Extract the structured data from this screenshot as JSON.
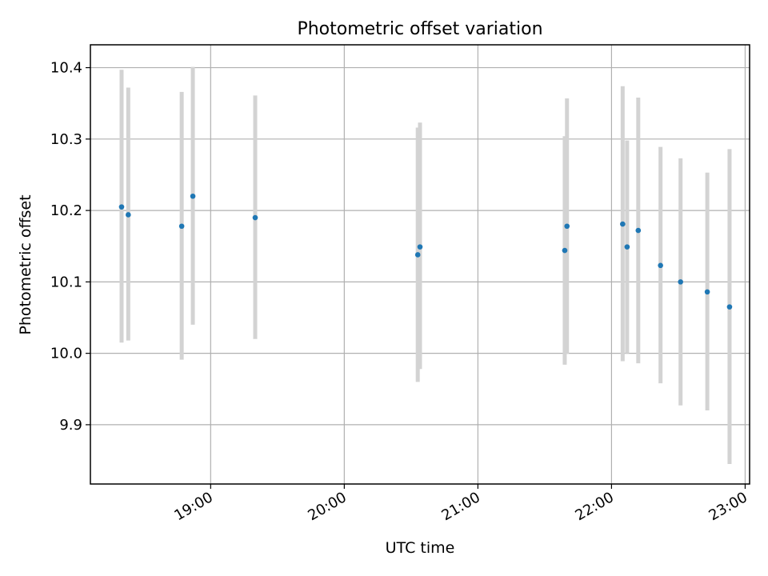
{
  "chart_data": {
    "type": "scatter",
    "title": "Photometric offset variation",
    "xlabel": "UTC time",
    "ylabel": "Photometric offset",
    "x_axis": {
      "kind": "time",
      "range": [
        "18:06",
        "23:02"
      ],
      "ticks": [
        "19:00",
        "20:00",
        "21:00",
        "22:00",
        "23:00"
      ]
    },
    "y_axis": {
      "range": [
        9.817,
        10.432
      ],
      "ticks": [
        "9.9",
        "10.0",
        "10.1",
        "10.2",
        "10.3",
        "10.4"
      ]
    },
    "grid": true,
    "colors": {
      "marker": "#1f77b4",
      "errorbar": "#d3d3d3",
      "grid": "#b0b0b0"
    },
    "points": [
      {
        "t": "18:20",
        "y": 10.205,
        "err_low": 10.015,
        "err_high": 10.397
      },
      {
        "t": "18:23",
        "y": 10.194,
        "err_low": 10.018,
        "err_high": 10.372
      },
      {
        "t": "18:47",
        "y": 10.178,
        "err_low": 9.991,
        "err_high": 10.366
      },
      {
        "t": "18:52",
        "y": 10.22,
        "err_low": 10.04,
        "err_high": 10.401
      },
      {
        "t": "19:20",
        "y": 10.19,
        "err_low": 10.02,
        "err_high": 10.361
      },
      {
        "t": "20:33",
        "y": 10.138,
        "err_low": 9.96,
        "err_high": 10.316
      },
      {
        "t": "20:34",
        "y": 10.149,
        "err_low": 9.978,
        "err_high": 10.323
      },
      {
        "t": "21:39",
        "y": 10.144,
        "err_low": 9.984,
        "err_high": 10.304
      },
      {
        "t": "21:40",
        "y": 10.178,
        "err_low": 9.999,
        "err_high": 10.357
      },
      {
        "t": "22:05",
        "y": 10.181,
        "err_low": 9.989,
        "err_high": 10.374
      },
      {
        "t": "22:07",
        "y": 10.149,
        "err_low": 10.0,
        "err_high": 10.298
      },
      {
        "t": "22:12",
        "y": 10.172,
        "err_low": 9.986,
        "err_high": 10.358
      },
      {
        "t": "22:22",
        "y": 10.123,
        "err_low": 9.958,
        "err_high": 10.289
      },
      {
        "t": "22:31",
        "y": 10.1,
        "err_low": 9.927,
        "err_high": 10.273
      },
      {
        "t": "22:43",
        "y": 10.086,
        "err_low": 9.92,
        "err_high": 10.253
      },
      {
        "t": "22:53",
        "y": 10.065,
        "err_low": 9.845,
        "err_high": 10.286
      }
    ]
  }
}
